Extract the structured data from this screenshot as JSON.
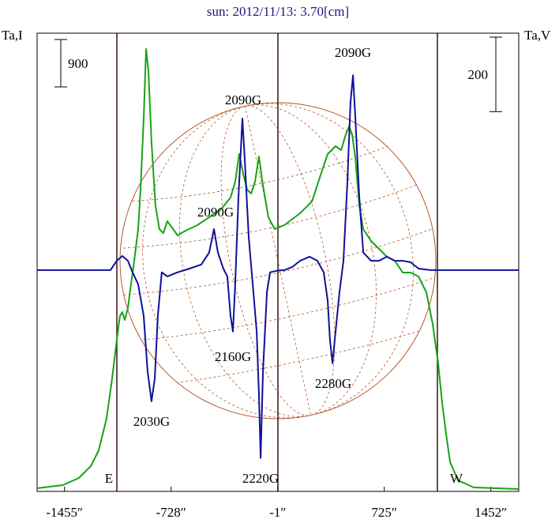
{
  "chart_data": {
    "type": "line",
    "title": "sun: 2012/11/13: 3.70[cm]",
    "y_label": "Ta,I",
    "y2_label": "Ta,V",
    "xlim": [
      -1642,
      1642
    ],
    "xticks": [
      {
        "value": -1455,
        "label": "-1455″"
      },
      {
        "value": -728,
        "label": "-728″"
      },
      {
        "value": -1,
        "label": "-1″"
      },
      {
        "value": 725,
        "label": "725″"
      },
      {
        "value": 1452,
        "label": "1452″"
      }
    ],
    "ylim": [
      -60,
      8640
    ],
    "y2lim": [
      -594,
      636
    ],
    "scale_bars": [
      {
        "value": 900,
        "axis": "y"
      },
      {
        "value": 200,
        "axis": "y2"
      }
    ],
    "annotations": [
      "2090G",
      "2090G",
      "2090G",
      "2160G",
      "2030G",
      "2220G",
      "2280G",
      "E",
      "W"
    ],
    "series": [
      {
        "color": "#17a317",
        "axis": "y",
        "x": [
          -1642,
          -1465,
          -1357,
          -1276,
          -1222,
          -1169,
          -1131,
          -1099,
          -1077,
          -1061,
          -1045,
          -1023,
          -1002,
          -980,
          -953,
          -937,
          -915,
          -899,
          -883,
          -862,
          -835,
          -808,
          -781,
          -754,
          -722,
          -684,
          -630,
          -549,
          -469,
          -388,
          -323,
          -291,
          -264,
          -237,
          -210,
          -183,
          -156,
          -129,
          -102,
          -65,
          -22,
          43,
          151,
          232,
          285,
          339,
          393,
          431,
          463,
          485,
          506,
          528,
          555,
          582,
          635,
          689,
          743,
          797,
          851,
          905,
          959,
          1012,
          1055,
          1093,
          1120,
          1147,
          1174,
          1228,
          1335,
          1642
        ],
        "values": [
          0,
          60,
          195,
          420,
          720,
          1320,
          2070,
          2820,
          3270,
          3345,
          3195,
          3420,
          3870,
          4320,
          4920,
          5670,
          7020,
          8340,
          7920,
          6570,
          5370,
          4920,
          4845,
          5070,
          4950,
          4800,
          4890,
          4995,
          5145,
          5295,
          5520,
          5820,
          6345,
          5970,
          5670,
          5595,
          5820,
          6300,
          5745,
          5145,
          4920,
          4995,
          5220,
          5445,
          5895,
          6345,
          6495,
          6420,
          6720,
          6870,
          6720,
          6270,
          5370,
          4920,
          4695,
          4545,
          4395,
          4320,
          4095,
          4095,
          4020,
          3720,
          3120,
          2370,
          1620,
          1020,
          495,
          150,
          15,
          -15
        ]
      },
      {
        "color": "#10109a",
        "axis": "y2",
        "x": [
          -1642,
          -1142,
          -1099,
          -1061,
          -1023,
          -991,
          -953,
          -915,
          -889,
          -862,
          -840,
          -819,
          -792,
          -754,
          -684,
          -603,
          -522,
          -469,
          -436,
          -409,
          -372,
          -345,
          -323,
          -307,
          -291,
          -269,
          -242,
          -226,
          -199,
          -172,
          -145,
          -129,
          -118,
          -102,
          -75,
          -54,
          -11,
          43,
          97,
          151,
          215,
          269,
          312,
          339,
          355,
          372,
          393,
          420,
          447,
          474,
          495,
          512,
          528,
          555,
          582,
          635,
          689,
          743,
          797,
          851,
          905,
          959,
          1039,
          1120,
          1642
        ],
        "values": [
          0,
          0,
          25,
          38,
          25,
          -6,
          -38,
          -123,
          -271,
          -352,
          -292,
          -123,
          -6,
          -17,
          -6,
          4,
          15,
          47,
          110,
          47,
          4,
          -17,
          -123,
          -165,
          -38,
          195,
          407,
          297,
          89,
          -38,
          -165,
          -335,
          -504,
          -271,
          -59,
          -6,
          -2,
          0,
          8,
          25,
          36,
          25,
          -6,
          -81,
          -187,
          -250,
          -165,
          -59,
          25,
          237,
          449,
          523,
          407,
          195,
          47,
          25,
          25,
          36,
          25,
          25,
          21,
          4,
          0,
          0,
          0
        ]
      }
    ]
  }
}
